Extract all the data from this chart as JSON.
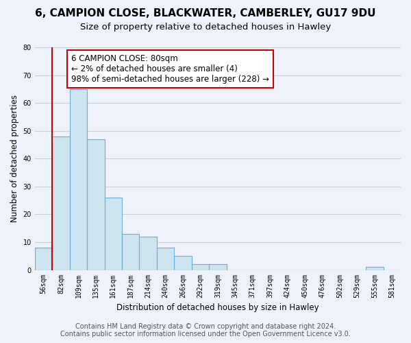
{
  "title": "6, CAMPION CLOSE, BLACKWATER, CAMBERLEY, GU17 9DU",
  "subtitle": "Size of property relative to detached houses in Hawley",
  "xlabel": "Distribution of detached houses by size in Hawley",
  "ylabel": "Number of detached properties",
  "bin_labels": [
    "56sqm",
    "82sqm",
    "109sqm",
    "135sqm",
    "161sqm",
    "187sqm",
    "214sqm",
    "240sqm",
    "266sqm",
    "292sqm",
    "319sqm",
    "345sqm",
    "371sqm",
    "397sqm",
    "424sqm",
    "450sqm",
    "476sqm",
    "502sqm",
    "529sqm",
    "555sqm",
    "581sqm"
  ],
  "bar_heights": [
    8,
    48,
    65,
    47,
    26,
    13,
    12,
    8,
    5,
    2,
    2,
    0,
    0,
    0,
    0,
    0,
    0,
    0,
    0,
    1,
    0
  ],
  "bar_fill": "#cce5f0",
  "bar_edge": "#6baed6",
  "highlight_color": "#cc0000",
  "red_line_x": 1,
  "annotation_line1": "6 CAMPION CLOSE: 80sqm",
  "annotation_line2": "← 2% of detached houses are smaller (4)",
  "annotation_line3": "98% of semi-detached houses are larger (228) →",
  "ylim": [
    0,
    80
  ],
  "yticks": [
    0,
    10,
    20,
    30,
    40,
    50,
    60,
    70,
    80
  ],
  "footer_line1": "Contains HM Land Registry data © Crown copyright and database right 2024.",
  "footer_line2": "Contains public sector information licensed under the Open Government Licence v3.0.",
  "bg_color": "#eef2fa",
  "grid_color": "#d0d8e8",
  "title_fontsize": 11,
  "subtitle_fontsize": 9.5,
  "axis_label_fontsize": 8.5,
  "tick_fontsize": 7,
  "ann_fontsize": 8.5,
  "footer_fontsize": 7
}
